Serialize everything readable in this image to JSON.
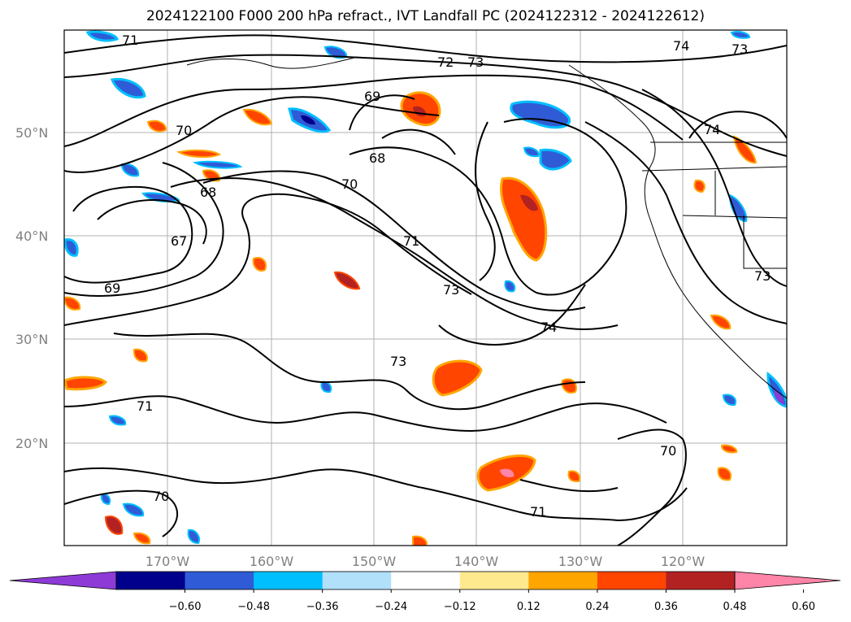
{
  "title": "2024122100 F000 200 hPa refract., IVT Landfall PC (2024122312 - 2024122612)",
  "map": {
    "lat_labels": [
      "50°N",
      "40°N",
      "30°N",
      "20°N"
    ],
    "lon_labels": [
      "170°W",
      "160°W",
      "150°W",
      "140°W",
      "130°W",
      "120°W"
    ],
    "contour_labels": [
      "71",
      "72",
      "73",
      "74",
      "73",
      "69",
      "70",
      "68",
      "70",
      "68",
      "67",
      "71",
      "69",
      "73",
      "74",
      "73",
      "71",
      "70",
      "70",
      "71",
      "73",
      "74"
    ]
  },
  "colorbar": {
    "ticks": [
      "−0.60",
      "−0.48",
      "−0.36",
      "−0.24",
      "−0.12",
      "0.12",
      "0.24",
      "0.36",
      "0.48",
      "0.60"
    ],
    "colors": [
      "#8e3ad6",
      "#00008c",
      "#2f5cd6",
      "#00bfff",
      "#b0e0fa",
      "#ffffff",
      "#ffe98f",
      "#ffa500",
      "#ff4500",
      "#b22222",
      "#ff85a8"
    ]
  }
}
